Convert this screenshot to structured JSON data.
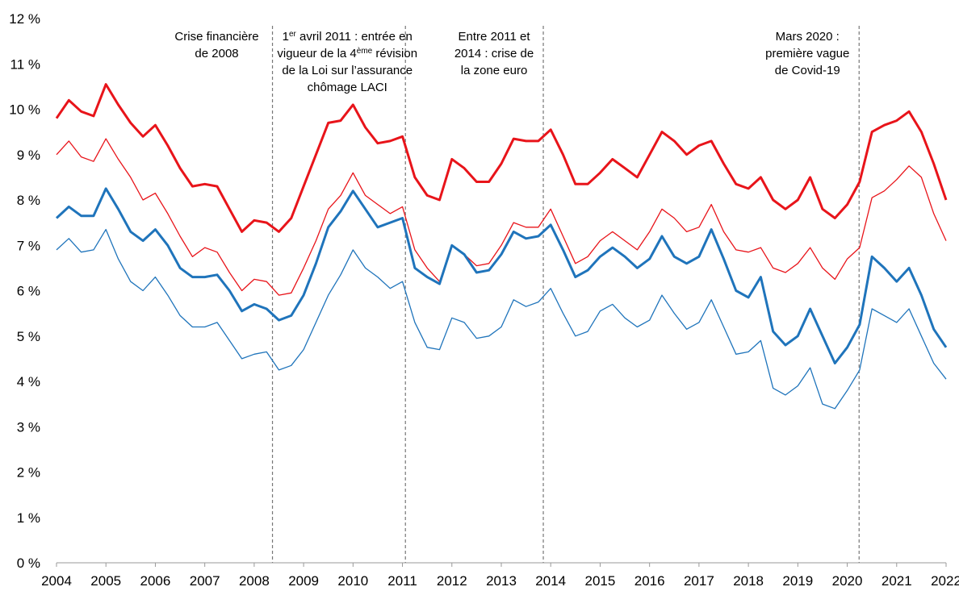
{
  "chart_data": {
    "type": "line",
    "x": [
      2004,
      2004.25,
      2004.5,
      2004.75,
      2005,
      2005.25,
      2005.5,
      2005.75,
      2006,
      2006.25,
      2006.5,
      2006.75,
      2007,
      2007.25,
      2007.5,
      2007.75,
      2008,
      2008.25,
      2008.5,
      2008.75,
      2009,
      2009.25,
      2009.5,
      2009.75,
      2010,
      2010.25,
      2010.5,
      2010.75,
      2011,
      2011.25,
      2011.5,
      2011.75,
      2012,
      2012.25,
      2012.5,
      2012.75,
      2013,
      2013.25,
      2013.5,
      2013.75,
      2014,
      2014.25,
      2014.5,
      2014.75,
      2015,
      2015.25,
      2015.5,
      2015.75,
      2016,
      2016.25,
      2016.5,
      2016.75,
      2017,
      2017.25,
      2017.5,
      2017.75,
      2018,
      2018.25,
      2018.5,
      2018.75,
      2019,
      2019.25,
      2019.5,
      2019.75,
      2020,
      2020.25,
      2020.5,
      2020.75,
      2021,
      2021.25,
      2021.5,
      2021.75,
      2022
    ],
    "series": [
      {
        "color": "#e8141a",
        "line_width": 3,
        "values": [
          9.8,
          10.2,
          9.95,
          9.85,
          10.55,
          10.1,
          9.7,
          9.4,
          9.65,
          9.2,
          8.7,
          8.3,
          8.35,
          8.3,
          7.8,
          7.3,
          7.55,
          7.5,
          7.3,
          7.6,
          8.3,
          9.0,
          9.7,
          9.75,
          10.1,
          9.6,
          9.25,
          9.3,
          9.4,
          8.5,
          8.1,
          8.0,
          8.9,
          8.7,
          8.4,
          8.4,
          8.8,
          9.35,
          9.3,
          9.3,
          9.55,
          9.0,
          8.35,
          8.35,
          8.6,
          8.9,
          8.7,
          8.5,
          9.0,
          9.5,
          9.3,
          9.0,
          9.2,
          9.3,
          8.8,
          8.35,
          8.25,
          8.5,
          8.0,
          7.8,
          8.0,
          8.5,
          7.8,
          7.6,
          7.9,
          8.4,
          9.5,
          9.65,
          9.75,
          9.95,
          9.5,
          8.8,
          8.0
        ]
      },
      {
        "color": "#e8141a",
        "line_width": 1.3,
        "values": [
          9.0,
          9.3,
          8.95,
          8.85,
          9.35,
          8.9,
          8.5,
          8.0,
          8.15,
          7.7,
          7.2,
          6.75,
          6.95,
          6.85,
          6.4,
          6.0,
          6.25,
          6.2,
          5.9,
          5.95,
          6.5,
          7.1,
          7.8,
          8.1,
          8.6,
          8.1,
          7.9,
          7.7,
          7.85,
          6.9,
          6.5,
          6.2,
          7.0,
          6.8,
          6.55,
          6.6,
          7.0,
          7.5,
          7.4,
          7.4,
          7.8,
          7.2,
          6.6,
          6.75,
          7.1,
          7.3,
          7.1,
          6.9,
          7.3,
          7.8,
          7.6,
          7.3,
          7.4,
          7.9,
          7.3,
          6.9,
          6.85,
          6.95,
          6.5,
          6.4,
          6.6,
          6.95,
          6.5,
          6.25,
          6.7,
          6.95,
          8.05,
          8.2,
          8.45,
          8.75,
          8.5,
          7.7,
          7.1
        ]
      },
      {
        "color": "#1f74bb",
        "line_width": 3,
        "values": [
          7.6,
          7.85,
          7.65,
          7.65,
          8.25,
          7.8,
          7.3,
          7.1,
          7.35,
          7.0,
          6.5,
          6.3,
          6.3,
          6.35,
          6.0,
          5.55,
          5.7,
          5.6,
          5.35,
          5.45,
          5.9,
          6.6,
          7.4,
          7.75,
          8.2,
          7.8,
          7.4,
          7.5,
          7.6,
          6.5,
          6.3,
          6.15,
          7.0,
          6.8,
          6.4,
          6.45,
          6.8,
          7.3,
          7.15,
          7.2,
          7.45,
          6.9,
          6.3,
          6.45,
          6.75,
          6.95,
          6.75,
          6.5,
          6.7,
          7.2,
          6.75,
          6.6,
          6.75,
          7.35,
          6.7,
          6.0,
          5.85,
          6.3,
          5.1,
          4.8,
          5.0,
          5.6,
          5.0,
          4.4,
          4.75,
          5.25,
          6.75,
          6.5,
          6.2,
          6.5,
          5.9,
          5.15,
          4.75
        ]
      },
      {
        "color": "#1f74bb",
        "line_width": 1.3,
        "values": [
          6.9,
          7.15,
          6.85,
          6.9,
          7.35,
          6.7,
          6.2,
          6.0,
          6.3,
          5.9,
          5.45,
          5.2,
          5.2,
          5.3,
          4.9,
          4.5,
          4.6,
          4.65,
          4.25,
          4.35,
          4.7,
          5.3,
          5.9,
          6.35,
          6.9,
          6.5,
          6.3,
          6.05,
          6.2,
          5.3,
          4.75,
          4.7,
          5.4,
          5.3,
          4.95,
          5.0,
          5.2,
          5.8,
          5.65,
          5.75,
          6.05,
          5.5,
          5.0,
          5.1,
          5.55,
          5.7,
          5.4,
          5.2,
          5.35,
          5.9,
          5.5,
          5.15,
          5.3,
          5.8,
          5.2,
          4.6,
          4.65,
          4.9,
          3.85,
          3.7,
          3.9,
          4.3,
          3.5,
          3.4,
          3.8,
          4.25,
          5.6,
          5.45,
          5.3,
          5.6,
          5.0,
          4.4,
          4.05
        ]
      }
    ],
    "xlim": [
      2004,
      2022
    ],
    "xticks": [
      2004,
      2005,
      2006,
      2007,
      2008,
      2009,
      2010,
      2011,
      2012,
      2013,
      2014,
      2015,
      2016,
      2017,
      2018,
      2019,
      2020,
      2021,
      2022
    ],
    "ylim": [
      0,
      12
    ],
    "yticks": [
      {
        "value": 0,
        "label": "0 %"
      },
      {
        "value": 1,
        "label": "1 %"
      },
      {
        "value": 2,
        "label": "2 %"
      },
      {
        "value": 3,
        "label": "3 %"
      },
      {
        "value": 4,
        "label": "4 %"
      },
      {
        "value": 5,
        "label": "5 %"
      },
      {
        "value": 6,
        "label": "6 %"
      },
      {
        "value": 7,
        "label": "7 %"
      },
      {
        "value": 8,
        "label": "8 %"
      },
      {
        "value": 9,
        "label": "9 %"
      },
      {
        "value": 10,
        "label": "10 %"
      },
      {
        "value": 11,
        "label": "11 %"
      },
      {
        "value": 12,
        "label": "12 %"
      }
    ],
    "grid": false,
    "events": [
      {
        "x": 2008.37,
        "lines": [
          [
            "Crise financière"
          ],
          [
            "de 2008"
          ]
        ]
      },
      {
        "x": 2011.06,
        "lines": [
          [
            "1",
            "er",
            " avril 2011 : entrée en"
          ],
          [
            "vigueur de la 4",
            "ème",
            " révision"
          ],
          [
            "de la Loi sur l’assurance"
          ],
          [
            "chômage LACI"
          ]
        ]
      },
      {
        "x": 2013.85,
        "lines": [
          [
            "Entre 2011 et"
          ],
          [
            "2014 : crise de"
          ],
          [
            "la zone euro"
          ]
        ]
      },
      {
        "x": 2020.24,
        "lines": [
          [
            "Mars 2020 :"
          ],
          [
            "première vague"
          ],
          [
            "de Covid-19"
          ]
        ]
      }
    ]
  }
}
